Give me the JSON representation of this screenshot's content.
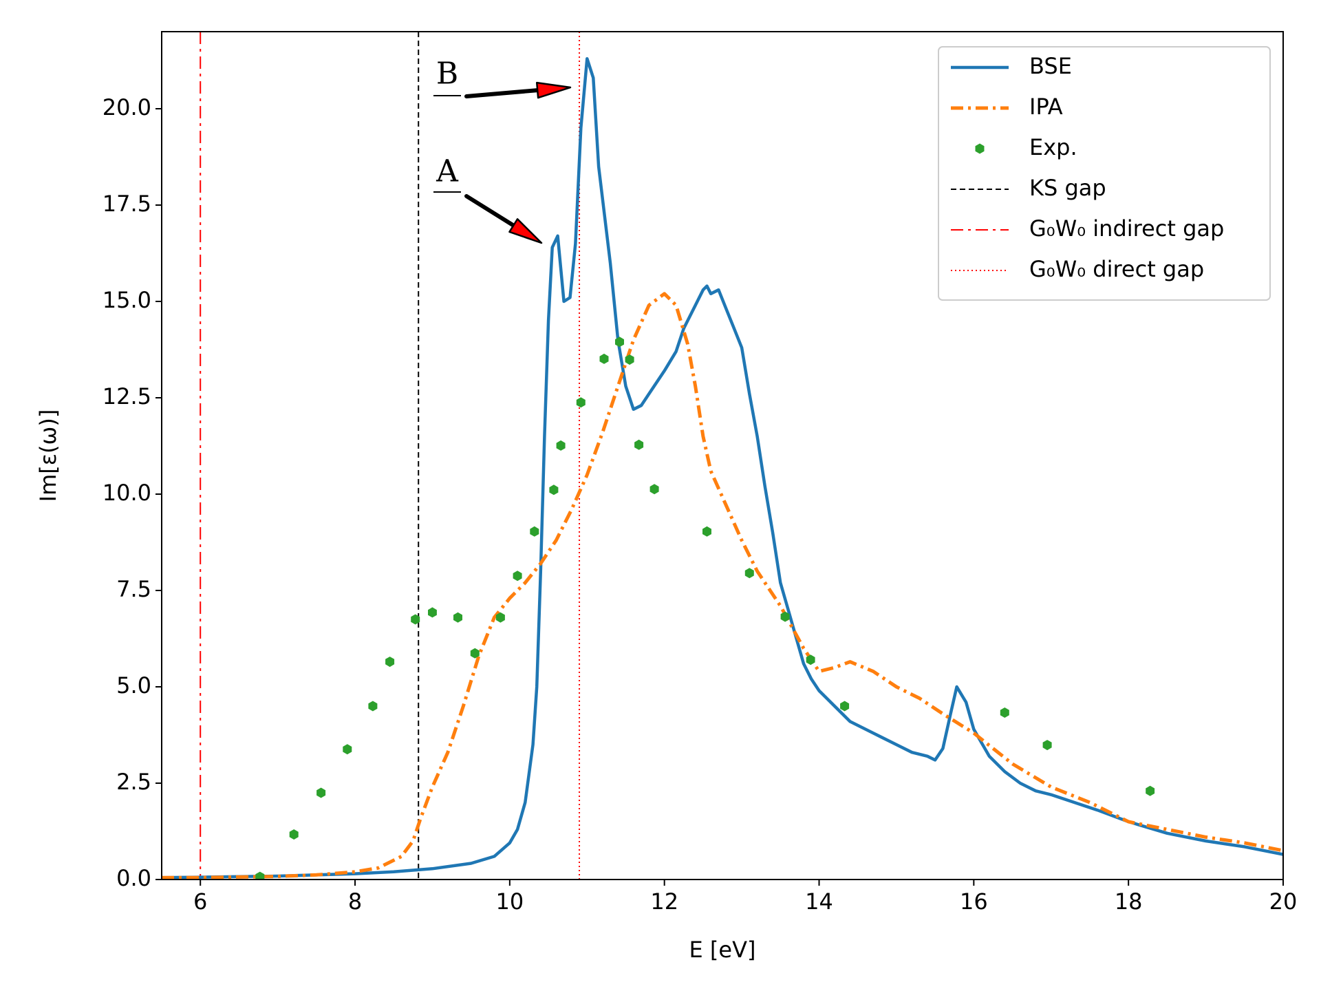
{
  "chart_data": {
    "type": "line",
    "x_label": "E [eV]",
    "y_label": "Im[ε(ω)]",
    "xlim": [
      5.5,
      20
    ],
    "ylim": [
      0,
      22
    ],
    "xticks": [
      6,
      8,
      10,
      12,
      14,
      16,
      18,
      20
    ],
    "yticks": [
      {
        "value": 0,
        "label": "0.0"
      },
      2.5,
      {
        "value": 5,
        "label": "5.0"
      },
      7.5,
      {
        "value": 10,
        "label": "10.0"
      },
      12.5,
      {
        "value": 15,
        "label": "15.0"
      },
      17.5,
      {
        "value": 20,
        "label": "20.0"
      }
    ],
    "grid": false,
    "legend": "upper right",
    "series": [
      {
        "name": "BSE",
        "color": "#1f77b4",
        "linestyle": "solid",
        "x": [
          5.5,
          6,
          7,
          8,
          8.5,
          9,
          9.5,
          9.8,
          10.0,
          10.1,
          10.2,
          10.3,
          10.35,
          10.4,
          10.45,
          10.5,
          10.55,
          10.62,
          10.7,
          10.78,
          10.85,
          10.92,
          11.0,
          11.08,
          11.15,
          11.3,
          11.4,
          11.5,
          11.6,
          11.7,
          11.8,
          12.0,
          12.15,
          12.25,
          12.4,
          12.5,
          12.55,
          12.6,
          12.7,
          12.8,
          12.9,
          13.0,
          13.1,
          13.2,
          13.3,
          13.4,
          13.5,
          13.6,
          13.7,
          13.8,
          13.9,
          14.0,
          14.2,
          14.4,
          14.6,
          14.8,
          15.0,
          15.2,
          15.4,
          15.5,
          15.6,
          15.7,
          15.78,
          15.9,
          16.0,
          16.2,
          16.4,
          16.6,
          16.8,
          17.0,
          17.3,
          17.6,
          18.0,
          18.5,
          19.0,
          19.5,
          20.0
        ],
        "values": [
          0.05,
          0.06,
          0.09,
          0.15,
          0.2,
          0.28,
          0.42,
          0.6,
          0.95,
          1.3,
          2.0,
          3.5,
          5.0,
          8.0,
          11.5,
          14.5,
          16.4,
          16.7,
          15.0,
          15.1,
          16.5,
          19.5,
          21.3,
          20.8,
          18.5,
          16.0,
          14.0,
          12.8,
          12.2,
          12.3,
          12.6,
          13.2,
          13.7,
          14.3,
          14.9,
          15.3,
          15.4,
          15.2,
          15.3,
          14.8,
          14.3,
          13.8,
          12.6,
          11.5,
          10.2,
          9.0,
          7.7,
          7.0,
          6.3,
          5.6,
          5.2,
          4.9,
          4.5,
          4.1,
          3.9,
          3.7,
          3.5,
          3.3,
          3.2,
          3.1,
          3.4,
          4.3,
          5.0,
          4.6,
          3.9,
          3.2,
          2.8,
          2.5,
          2.3,
          2.2,
          2.0,
          1.8,
          1.5,
          1.2,
          1.0,
          0.85,
          0.65
        ]
      },
      {
        "name": "IPA",
        "color": "#ff7f0e",
        "linestyle": "dashdot",
        "x": [
          5.5,
          6,
          7,
          7.5,
          8,
          8.3,
          8.6,
          8.75,
          8.85,
          9.0,
          9.2,
          9.4,
          9.6,
          9.8,
          10.0,
          10.2,
          10.4,
          10.6,
          10.8,
          11.0,
          11.2,
          11.4,
          11.6,
          11.8,
          12.0,
          12.15,
          12.3,
          12.4,
          12.5,
          12.6,
          12.8,
          13.0,
          13.2,
          13.5,
          13.8,
          14.0,
          14.2,
          14.4,
          14.7,
          15.0,
          15.3,
          15.6,
          16.0,
          16.5,
          17.0,
          17.5,
          18.0,
          18.5,
          19.0,
          19.5,
          20.0
        ],
        "values": [
          0.05,
          0.05,
          0.08,
          0.12,
          0.2,
          0.3,
          0.6,
          1.0,
          1.6,
          2.4,
          3.3,
          4.5,
          5.8,
          6.8,
          7.3,
          7.7,
          8.2,
          8.8,
          9.6,
          10.5,
          11.6,
          12.8,
          14.0,
          14.9,
          15.2,
          14.9,
          13.9,
          12.8,
          11.5,
          10.6,
          9.7,
          8.8,
          8.0,
          7.1,
          6.0,
          5.4,
          5.5,
          5.65,
          5.4,
          5.0,
          4.7,
          4.3,
          3.8,
          3.0,
          2.4,
          2.0,
          1.5,
          1.3,
          1.1,
          0.95,
          0.75
        ]
      },
      {
        "name": "Exp.",
        "color": "#2ca02c",
        "linestyle": "none",
        "x": [
          6.77,
          7.21,
          7.56,
          7.9,
          8.23,
          8.45,
          8.78,
          9.0,
          9.33,
          9.55,
          9.88,
          10.1,
          10.32,
          10.57,
          10.66,
          10.92,
          11.22,
          11.42,
          11.55,
          11.67,
          11.87,
          12.55,
          13.1,
          13.56,
          13.89,
          14.33,
          16.4,
          16.95,
          18.28
        ],
        "values": [
          0.07,
          1.17,
          2.25,
          3.38,
          4.5,
          5.65,
          6.75,
          6.93,
          6.8,
          5.87,
          6.8,
          7.88,
          9.03,
          10.11,
          11.26,
          12.38,
          13.51,
          13.95,
          13.49,
          11.28,
          10.13,
          9.03,
          7.95,
          6.82,
          5.7,
          4.5,
          4.33,
          3.49,
          2.3
        ]
      }
    ],
    "vlines": [
      {
        "name": "KS gap",
        "x": 8.82,
        "color": "#000000",
        "linestyle": "dashed"
      },
      {
        "name": "G₀W₀ indirect gap",
        "x": 6.0,
        "color": "#ff0000",
        "linestyle": "dashdot"
      },
      {
        "name": "G₀W₀ direct gap",
        "x": 10.9,
        "color": "#ff0000",
        "linestyle": "dotted"
      }
    ],
    "annotations": [
      "A",
      "B"
    ]
  }
}
